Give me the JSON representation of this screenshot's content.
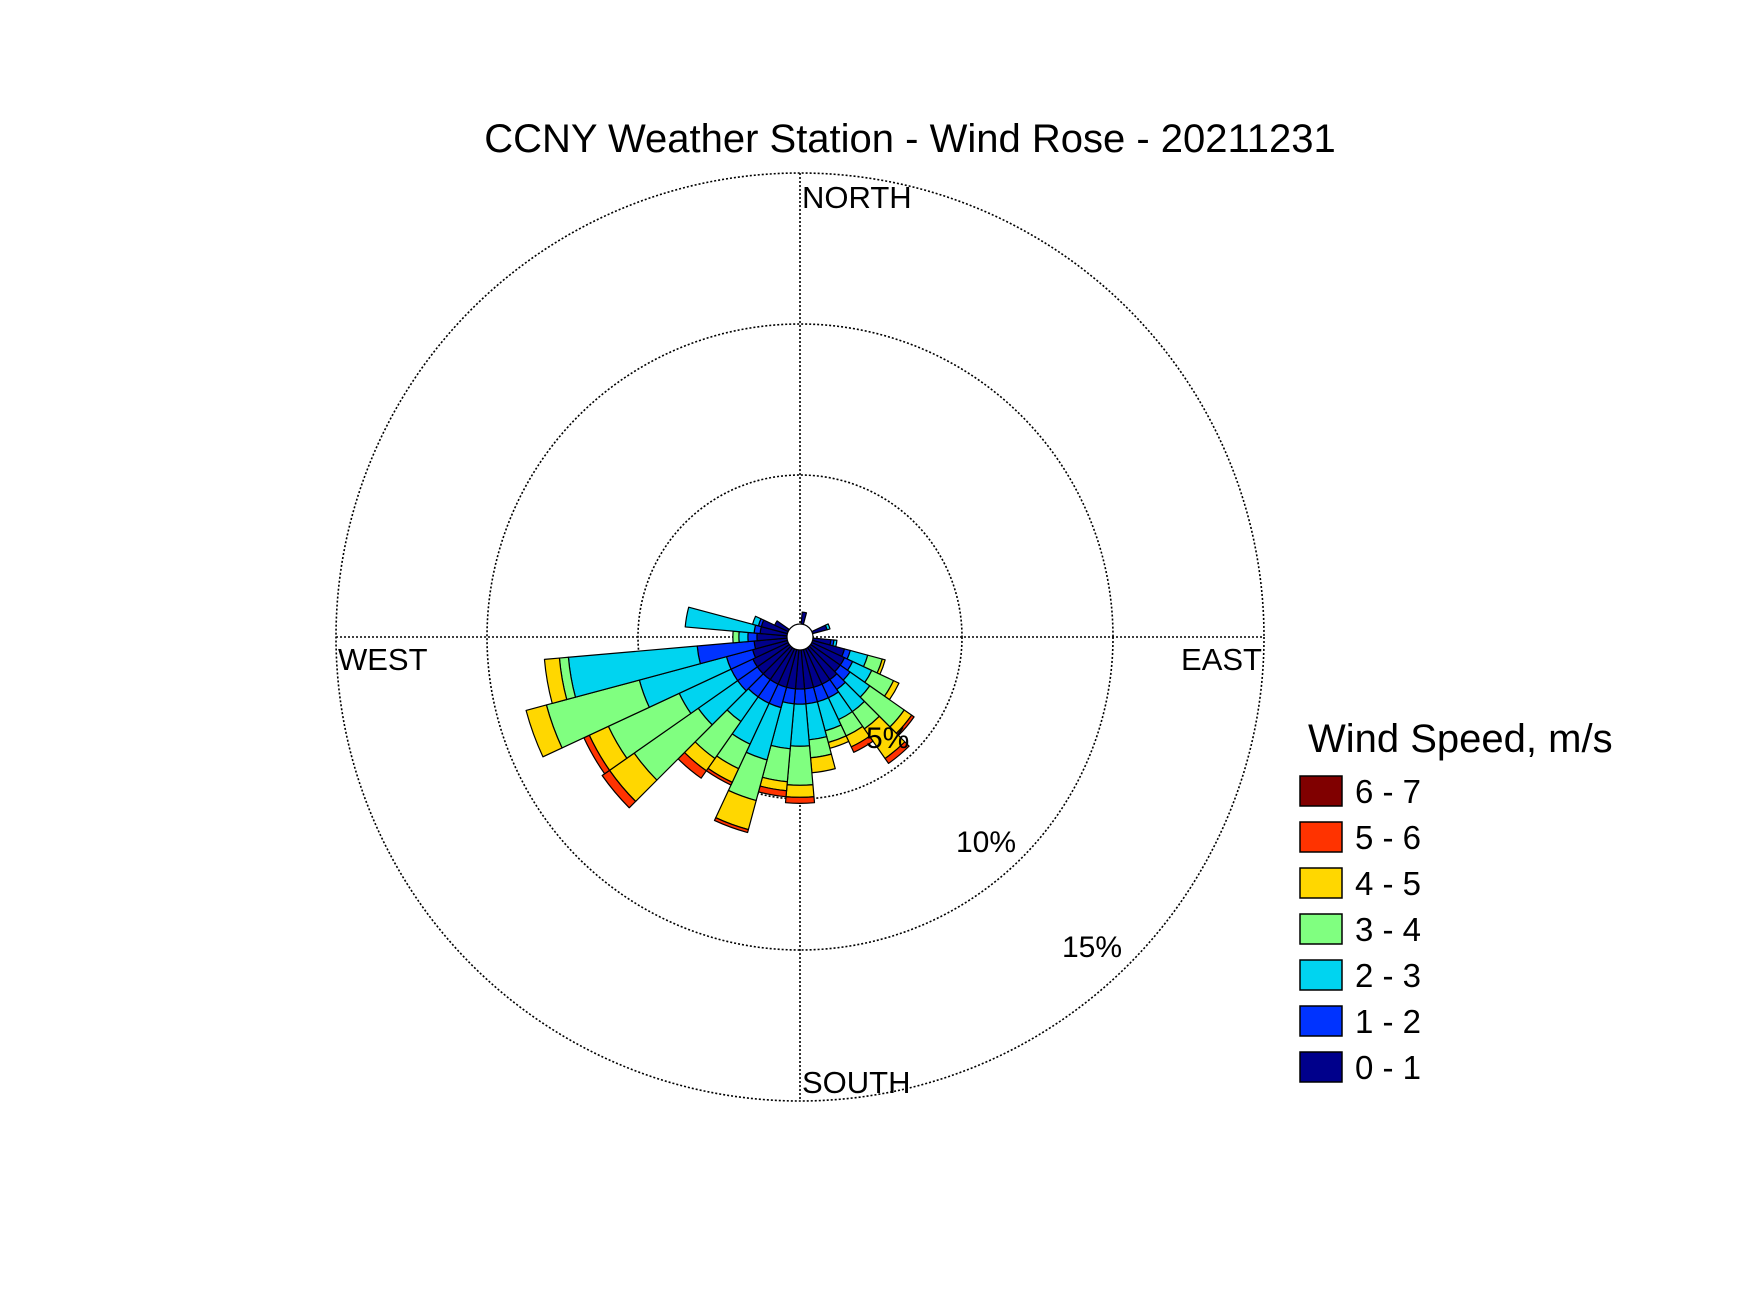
{
  "chart_data": {
    "type": "wind_rose",
    "title": "CCNY Weather Station - Wind Rose - 20211231",
    "directions": {
      "north": "NORTH",
      "south": "SOUTH",
      "east": "EAST",
      "west": "WEST"
    },
    "ring_values": [
      5,
      10,
      15
    ],
    "ring_labels": [
      "5%",
      "10%",
      "15%"
    ],
    "rlim": [
      0,
      15
    ],
    "legend": {
      "title": "Wind Speed, m/s",
      "placement": "right",
      "bins": [
        {
          "label": "6 - 7",
          "color": "#800000"
        },
        {
          "label": "5 - 6",
          "color": "#ff3300"
        },
        {
          "label": "4 - 5",
          "color": "#ffd700"
        },
        {
          "label": "3 - 4",
          "color": "#80ff80"
        },
        {
          "label": "2 - 3",
          "color": "#00d4f0"
        },
        {
          "label": "1 - 2",
          "color": "#0033ff"
        },
        {
          "label": "0 - 1",
          "color": "#00008b"
        }
      ]
    },
    "bin_order": [
      "0 - 1",
      "1 - 2",
      "2 - 3",
      "3 - 4",
      "4 - 5",
      "5 - 6",
      "6 - 7"
    ],
    "sector_width_deg": 10,
    "sectors": [
      {
        "dir": 10,
        "cum": [
          0.4,
          0.4,
          0.4,
          0.4,
          0.4,
          0.4,
          0.4
        ]
      },
      {
        "dir": 70,
        "cum": [
          0.5,
          0.5,
          0.6,
          0.6,
          0.6,
          0.6,
          0.6
        ]
      },
      {
        "dir": 100,
        "cum": [
          0.6,
          0.7,
          0.8,
          0.8,
          0.8,
          0.8,
          0.8
        ]
      },
      {
        "dir": 110,
        "cum": [
          1.1,
          1.3,
          1.9,
          2.4,
          2.5,
          2.5,
          2.5
        ]
      },
      {
        "dir": 120,
        "cum": [
          1.2,
          1.5,
          2.2,
          3.0,
          3.2,
          3.2,
          3.2
        ]
      },
      {
        "dir": 130,
        "cum": [
          1.2,
          1.6,
          2.4,
          3.8,
          4.1,
          4.2,
          4.2
        ]
      },
      {
        "dir": 140,
        "cum": [
          1.3,
          1.7,
          2.6,
          3.3,
          4.5,
          4.7,
          4.7
        ]
      },
      {
        "dir": 150,
        "cum": [
          1.3,
          1.8,
          2.6,
          3.2,
          3.6,
          3.8,
          3.8
        ]
      },
      {
        "dir": 160,
        "cum": [
          1.3,
          1.8,
          2.8,
          3.2,
          3.4,
          3.4,
          3.4
        ]
      },
      {
        "dir": 170,
        "cum": [
          1.3,
          1.8,
          3.0,
          3.6,
          4.1,
          4.1,
          4.1
        ]
      },
      {
        "dir": 180,
        "cum": [
          1.3,
          1.8,
          3.2,
          4.5,
          4.9,
          5.1,
          5.1
        ]
      },
      {
        "dir": 190,
        "cum": [
          1.3,
          1.8,
          3.3,
          4.4,
          4.7,
          4.9,
          4.9
        ]
      },
      {
        "dir": 200,
        "cum": [
          1.3,
          2.0,
          3.8,
          5.2,
          6.2,
          6.3,
          6.3
        ]
      },
      {
        "dir": 210,
        "cum": [
          1.3,
          2.0,
          3.5,
          4.4,
          4.9,
          5.0,
          5.0
        ]
      },
      {
        "dir": 220,
        "cum": [
          1.3,
          2.0,
          3.0,
          4.5,
          5.0,
          5.3,
          5.3
        ]
      },
      {
        "dir": 230,
        "cum": [
          1.3,
          2.1,
          3.7,
          6.3,
          7.3,
          7.6,
          7.6
        ]
      },
      {
        "dir": 240,
        "cum": [
          1.3,
          2.1,
          4.0,
          6.6,
          7.3,
          7.5,
          7.5
        ]
      },
      {
        "dir": 250,
        "cum": [
          1.2,
          2.1,
          5.1,
          8.3,
          9.0,
          9.0,
          9.0
        ]
      },
      {
        "dir": 260,
        "cum": [
          1.1,
          3.0,
          7.3,
          7.6,
          8.1,
          8.1,
          8.1
        ]
      },
      {
        "dir": 270,
        "cum": [
          1.0,
          1.3,
          1.6,
          1.8,
          1.8,
          1.8,
          1.8
        ]
      },
      {
        "dir": 280,
        "cum": [
          0.9,
          1.1,
          3.4,
          3.4,
          3.4,
          3.4,
          3.4
        ]
      },
      {
        "dir": 290,
        "cum": [
          0.9,
          1.0,
          1.2,
          1.2,
          1.2,
          1.2,
          1.2
        ]
      },
      {
        "dir": 300,
        "cum": [
          0.5,
          0.5,
          0.5,
          0.5,
          0.5,
          0.5,
          0.5
        ]
      }
    ]
  }
}
